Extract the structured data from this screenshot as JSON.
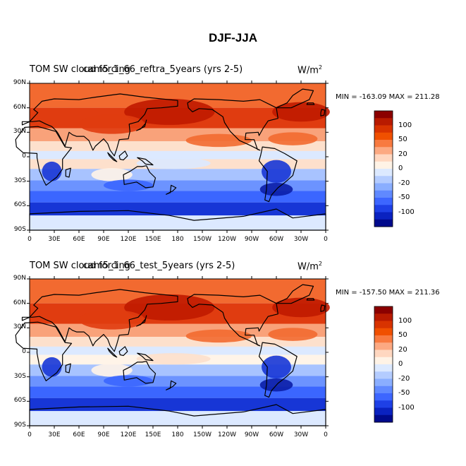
{
  "page_title": "DJF-JJA",
  "panels": [
    {
      "id": "top",
      "title_left": "TOM SW cloud forcing",
      "title_overlap": "cam5_1_66_reftra_5years (yrs 2-5)",
      "units": "W/m",
      "units_sup": "2",
      "minmax": "MIN = -163.09  MAX = 211.28"
    },
    {
      "id": "bottom",
      "title_left": "TOM SW cloud forcing",
      "title_overlap": "cam5_1_66_test_5years (yrs 2-5)",
      "units": "W/m",
      "units_sup": "2",
      "minmax": "MIN = -157.50  MAX = 211.36"
    }
  ],
  "lat_labels": [
    "90N",
    "60N",
    "30N",
    "0",
    "30S",
    "60S",
    "90S"
  ],
  "lon_labels": [
    "0",
    "30E",
    "60E",
    "90E",
    "120E",
    "150E",
    "180",
    "150W",
    "120W",
    "90W",
    "60W",
    "30W",
    "0"
  ],
  "colorbar": {
    "labels": [
      "100",
      "50",
      "20",
      "0",
      "-20",
      "-50",
      "-100"
    ],
    "colors": [
      "#8b0000",
      "#b81a00",
      "#d83300",
      "#f05000",
      "#f87a40",
      "#fca982",
      "#ffd7c0",
      "#fff3e6",
      "#dce9ff",
      "#b4ccff",
      "#8aaeff",
      "#6089ff",
      "#3d66ff",
      "#1e40e6",
      "#0a22c0",
      "#000a8c"
    ]
  },
  "map_colors": {
    "deep_red": "#c01a00",
    "red": "#e03c10",
    "orange": "#f26a30",
    "light_orange": "#f9a27a",
    "pale": "#fde0cc",
    "cream": "#fff4e8",
    "ice": "#dce9ff",
    "light_blue": "#a8c3ff",
    "blue": "#6c93ff",
    "mid_blue": "#3b66ff",
    "deep_blue": "#1736d6",
    "navy": "#0b1ea8"
  }
}
